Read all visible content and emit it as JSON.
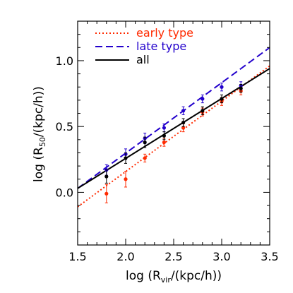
{
  "chart_data": {
    "type": "scatter",
    "xlabel_main": "log (R",
    "xlabel_sub": "vir",
    "xlabel_tail": "/(kpc/h))",
    "ylabel_main": "log (R",
    "ylabel_sub": "50",
    "ylabel_tail": "/(kpc/h))",
    "xlim": [
      1.5,
      3.5
    ],
    "ylim": [
      -0.4,
      1.3
    ],
    "xticks": [
      "1.5",
      "2.0",
      "2.5",
      "3.0",
      "3.5"
    ],
    "yticks": [
      "0.0",
      "0.5",
      "1.0"
    ],
    "xtick_values": [
      1.5,
      2.0,
      2.5,
      3.0,
      3.5
    ],
    "ytick_values": [
      0.0,
      0.5,
      1.0
    ],
    "legend_position": "top-left",
    "series": [
      {
        "name": "early type",
        "color": "#ff2a00",
        "line_style": "dotted",
        "fit": [
          [
            1.5,
            -0.11
          ],
          [
            3.5,
            0.96
          ]
        ],
        "points": [
          {
            "x": 1.8,
            "y": -0.01,
            "err": 0.07
          },
          {
            "x": 2.0,
            "y": 0.1,
            "err": 0.06
          },
          {
            "x": 2.2,
            "y": 0.26,
            "err": 0.03
          },
          {
            "x": 2.4,
            "y": 0.38,
            "err": 0.03
          },
          {
            "x": 2.6,
            "y": 0.49,
            "err": 0.03
          },
          {
            "x": 2.8,
            "y": 0.61,
            "err": 0.03
          },
          {
            "x": 3.0,
            "y": 0.69,
            "err": 0.03
          },
          {
            "x": 3.2,
            "y": 0.77,
            "err": 0.03
          }
        ]
      },
      {
        "name": "late type",
        "color": "#2200cc",
        "line_style": "dashed",
        "fit": [
          [
            1.5,
            0.03
          ],
          [
            3.5,
            1.1
          ]
        ],
        "points": [
          {
            "x": 1.8,
            "y": 0.17,
            "err": 0.04
          },
          {
            "x": 2.0,
            "y": 0.29,
            "err": 0.04
          },
          {
            "x": 2.2,
            "y": 0.41,
            "err": 0.04
          },
          {
            "x": 2.4,
            "y": 0.49,
            "err": 0.03
          },
          {
            "x": 2.6,
            "y": 0.62,
            "err": 0.03
          },
          {
            "x": 2.8,
            "y": 0.71,
            "err": 0.03
          },
          {
            "x": 3.0,
            "y": 0.8,
            "err": 0.03
          },
          {
            "x": 3.2,
            "y": 0.81,
            "err": 0.03
          }
        ]
      },
      {
        "name": "all",
        "color": "#000000",
        "line_style": "solid",
        "fit": [
          [
            1.5,
            0.03
          ],
          [
            3.5,
            0.94
          ]
        ],
        "points": [
          {
            "x": 1.8,
            "y": 0.12,
            "err": 0.05
          },
          {
            "x": 2.0,
            "y": 0.26,
            "err": 0.04
          },
          {
            "x": 2.2,
            "y": 0.38,
            "err": 0.04
          },
          {
            "x": 2.4,
            "y": 0.43,
            "err": 0.03
          },
          {
            "x": 2.6,
            "y": 0.53,
            "err": 0.03
          },
          {
            "x": 2.8,
            "y": 0.62,
            "err": 0.03
          },
          {
            "x": 3.0,
            "y": 0.71,
            "err": 0.03
          },
          {
            "x": 3.2,
            "y": 0.79,
            "err": 0.03
          }
        ]
      }
    ]
  }
}
